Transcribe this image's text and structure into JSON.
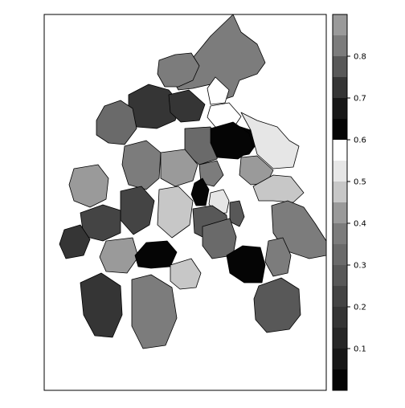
{
  "chart_data": {
    "type": "choropleth",
    "title": "",
    "colorbar": {
      "min": 0.0,
      "max": 0.9,
      "tick_labels": [
        "0.1",
        "0.2",
        "0.3",
        "0.4",
        "0.5",
        "0.6",
        "0.7",
        "0.8"
      ],
      "bands": [
        {
          "from": 0.0,
          "to": 0.05,
          "color": "#050505"
        },
        {
          "from": 0.05,
          "to": 0.1,
          "color": "#171717"
        },
        {
          "from": 0.1,
          "to": 0.15,
          "color": "#272727"
        },
        {
          "from": 0.15,
          "to": 0.2,
          "color": "#353535"
        },
        {
          "from": 0.2,
          "to": 0.25,
          "color": "#444444"
        },
        {
          "from": 0.25,
          "to": 0.3,
          "color": "#585858"
        },
        {
          "from": 0.3,
          "to": 0.35,
          "color": "#6a6a6a"
        },
        {
          "from": 0.35,
          "to": 0.4,
          "color": "#7c7c7c"
        },
        {
          "from": 0.4,
          "to": 0.45,
          "color": "#9a9a9a"
        },
        {
          "from": 0.45,
          "to": 0.5,
          "color": "#c7c7c7"
        },
        {
          "from": 0.5,
          "to": 0.55,
          "color": "#e6e6e6"
        },
        {
          "from": 0.55,
          "to": 0.6,
          "color": "#ffffff"
        },
        {
          "from": 0.6,
          "to": 0.65,
          "color": "#050505"
        },
        {
          "from": 0.65,
          "to": 0.7,
          "color": "#171717"
        },
        {
          "from": 0.7,
          "to": 0.75,
          "color": "#353535"
        },
        {
          "from": 0.75,
          "to": 0.8,
          "color": "#585858"
        },
        {
          "from": 0.8,
          "to": 0.85,
          "color": "#7c7c7c"
        },
        {
          "from": 0.85,
          "to": 0.9,
          "color": "#9a9a9a"
        }
      ]
    },
    "regions": [
      {
        "value": 0.82
      },
      {
        "value": 0.8
      },
      {
        "value": 0.55
      },
      {
        "value": 0.71
      },
      {
        "value": 0.33
      },
      {
        "value": 0.72
      },
      {
        "value": 0.58
      },
      {
        "value": 0.63
      },
      {
        "value": 0.31
      },
      {
        "value": 0.53
      },
      {
        "value": 0.41
      },
      {
        "value": 0.35
      },
      {
        "value": 0.44
      },
      {
        "value": 0.38
      },
      {
        "value": 0.02
      },
      {
        "value": 0.03
      },
      {
        "value": 0.45
      },
      {
        "value": 0.53
      },
      {
        "value": 0.29
      },
      {
        "value": 0.36
      },
      {
        "value": 0.24
      },
      {
        "value": 0.46
      },
      {
        "value": 0.26
      },
      {
        "value": 0.33
      },
      {
        "value": 0.41
      },
      {
        "value": 0.22
      },
      {
        "value": 0.15
      },
      {
        "value": 0.42
      },
      {
        "value": 0.63
      },
      {
        "value": 0.47
      },
      {
        "value": 0.62
      },
      {
        "value": 0.38
      },
      {
        "value": 0.28
      },
      {
        "value": 0.19
      },
      {
        "value": 0.37
      }
    ]
  }
}
